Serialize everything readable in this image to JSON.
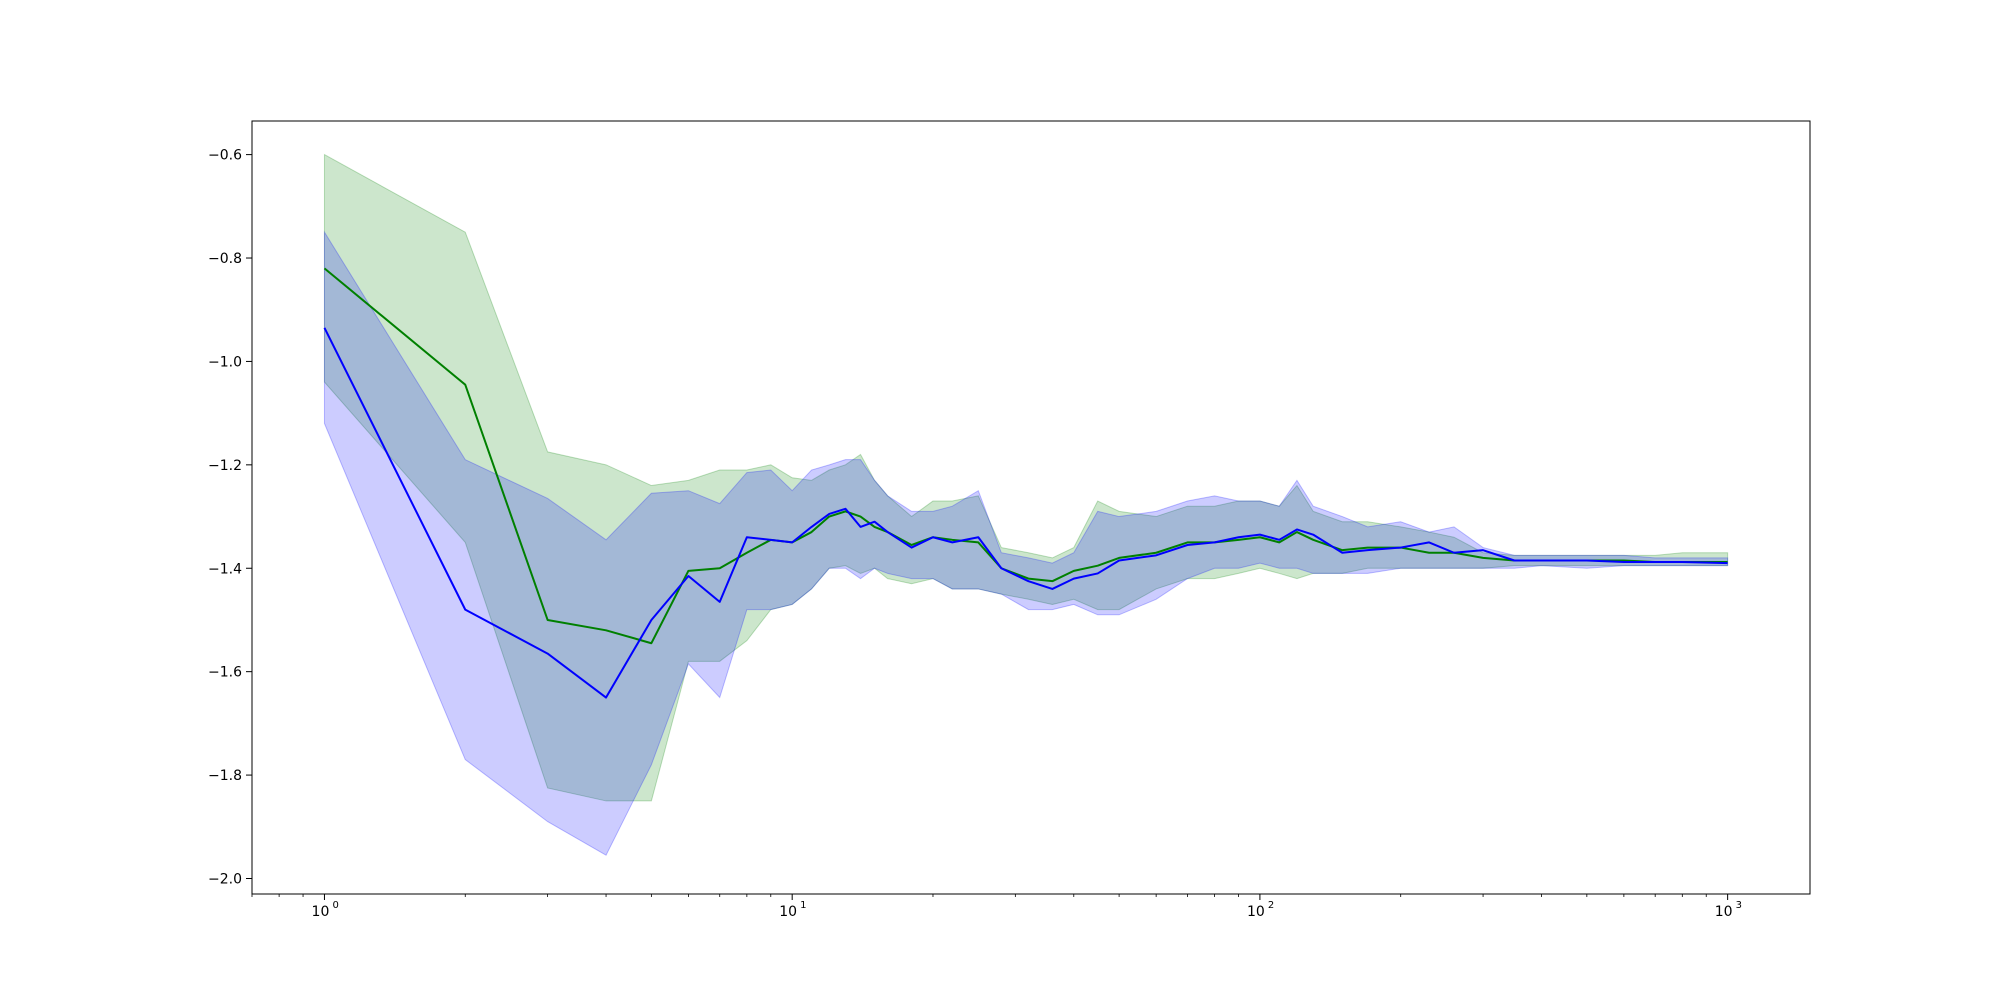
{
  "chart_data": {
    "type": "line",
    "title": "",
    "xlabel": "",
    "ylabel": "",
    "xscale": "log",
    "xlim": [
      0.7,
      1500
    ],
    "ylim": [
      -2.03,
      -0.535
    ],
    "grid": false,
    "legend": "none",
    "x_ticks": [
      {
        "base": "10",
        "exp": "0",
        "value": 1
      },
      {
        "base": "10",
        "exp": "1",
        "value": 10
      },
      {
        "base": "10",
        "exp": "2",
        "value": 100
      },
      {
        "base": "10",
        "exp": "3",
        "value": 1000
      }
    ],
    "y_ticks": [
      {
        "label": "−0.6",
        "value": -0.6
      },
      {
        "label": "−0.8",
        "value": -0.8
      },
      {
        "label": "−1.0",
        "value": -1.0
      },
      {
        "label": "−1.2",
        "value": -1.2
      },
      {
        "label": "−1.4",
        "value": -1.4
      },
      {
        "label": "−1.6",
        "value": -1.6
      },
      {
        "label": "−1.8",
        "value": -1.8
      },
      {
        "label": "−2.0",
        "value": -2.0
      }
    ],
    "series": [
      {
        "color": "#008000",
        "band_color": "#008000",
        "x": [
          1,
          2,
          3,
          4,
          5,
          6,
          7,
          8,
          9,
          10,
          11,
          12,
          13,
          14,
          15,
          16,
          18,
          20,
          22,
          25,
          28,
          32,
          36,
          40,
          45,
          50,
          60,
          70,
          80,
          90,
          100,
          110,
          120,
          130,
          150,
          170,
          200,
          230,
          260,
          300,
          350,
          400,
          500,
          600,
          700,
          800,
          1000
        ],
        "y": [
          -0.82,
          -1.045,
          -1.5,
          -1.52,
          -1.545,
          -1.405,
          -1.4,
          -1.37,
          -1.345,
          -1.35,
          -1.33,
          -1.3,
          -1.29,
          -1.3,
          -1.32,
          -1.33,
          -1.355,
          -1.34,
          -1.345,
          -1.35,
          -1.4,
          -1.42,
          -1.425,
          -1.405,
          -1.395,
          -1.38,
          -1.37,
          -1.35,
          -1.35,
          -1.345,
          -1.34,
          -1.35,
          -1.33,
          -1.345,
          -1.365,
          -1.36,
          -1.36,
          -1.37,
          -1.37,
          -1.38,
          -1.385,
          -1.385,
          -1.385,
          -1.385,
          -1.388,
          -1.388,
          -1.388
        ],
        "low": [
          -1.04,
          -1.35,
          -1.825,
          -1.85,
          -1.85,
          -1.58,
          -1.58,
          -1.54,
          -1.48,
          -1.47,
          -1.44,
          -1.4,
          -1.395,
          -1.41,
          -1.4,
          -1.42,
          -1.43,
          -1.42,
          -1.44,
          -1.44,
          -1.45,
          -1.46,
          -1.47,
          -1.46,
          -1.48,
          -1.48,
          -1.44,
          -1.42,
          -1.42,
          -1.41,
          -1.4,
          -1.41,
          -1.42,
          -1.41,
          -1.41,
          -1.4,
          -1.4,
          -1.4,
          -1.4,
          -1.4,
          -1.395,
          -1.395,
          -1.395,
          -1.395,
          -1.395,
          -1.395,
          -1.395
        ],
        "high": [
          -0.6,
          -0.75,
          -1.175,
          -1.2,
          -1.24,
          -1.23,
          -1.21,
          -1.21,
          -1.2,
          -1.225,
          -1.23,
          -1.21,
          -1.2,
          -1.18,
          -1.23,
          -1.26,
          -1.3,
          -1.27,
          -1.27,
          -1.26,
          -1.36,
          -1.37,
          -1.38,
          -1.36,
          -1.27,
          -1.29,
          -1.3,
          -1.28,
          -1.28,
          -1.27,
          -1.27,
          -1.28,
          -1.24,
          -1.29,
          -1.31,
          -1.31,
          -1.32,
          -1.33,
          -1.34,
          -1.37,
          -1.375,
          -1.375,
          -1.375,
          -1.375,
          -1.375,
          -1.37,
          -1.37
        ]
      },
      {
        "color": "#0000ff",
        "band_color": "#0000ff",
        "x": [
          1,
          2,
          3,
          4,
          5,
          6,
          7,
          8,
          9,
          10,
          11,
          12,
          13,
          14,
          15,
          16,
          18,
          20,
          22,
          25,
          28,
          32,
          36,
          40,
          45,
          50,
          60,
          70,
          80,
          90,
          100,
          110,
          120,
          130,
          150,
          170,
          200,
          230,
          260,
          300,
          350,
          400,
          500,
          600,
          700,
          800,
          1000
        ],
        "y": [
          -0.935,
          -1.48,
          -1.565,
          -1.65,
          -1.5,
          -1.415,
          -1.465,
          -1.34,
          -1.345,
          -1.35,
          -1.32,
          -1.295,
          -1.285,
          -1.32,
          -1.31,
          -1.33,
          -1.36,
          -1.34,
          -1.35,
          -1.34,
          -1.4,
          -1.425,
          -1.44,
          -1.42,
          -1.41,
          -1.385,
          -1.375,
          -1.355,
          -1.35,
          -1.34,
          -1.335,
          -1.345,
          -1.325,
          -1.335,
          -1.37,
          -1.365,
          -1.36,
          -1.35,
          -1.37,
          -1.365,
          -1.385,
          -1.385,
          -1.385,
          -1.388,
          -1.388,
          -1.388,
          -1.39
        ],
        "low": [
          -1.12,
          -1.77,
          -1.89,
          -1.955,
          -1.78,
          -1.585,
          -1.65,
          -1.48,
          -1.48,
          -1.47,
          -1.44,
          -1.4,
          -1.4,
          -1.42,
          -1.4,
          -1.41,
          -1.42,
          -1.42,
          -1.44,
          -1.44,
          -1.45,
          -1.48,
          -1.48,
          -1.47,
          -1.49,
          -1.49,
          -1.46,
          -1.42,
          -1.4,
          -1.4,
          -1.39,
          -1.4,
          -1.4,
          -1.41,
          -1.41,
          -1.41,
          -1.4,
          -1.4,
          -1.4,
          -1.4,
          -1.4,
          -1.395,
          -1.4,
          -1.395,
          -1.395,
          -1.395,
          -1.395
        ],
        "high": [
          -0.75,
          -1.19,
          -1.265,
          -1.345,
          -1.255,
          -1.25,
          -1.275,
          -1.215,
          -1.21,
          -1.25,
          -1.21,
          -1.2,
          -1.19,
          -1.19,
          -1.23,
          -1.26,
          -1.29,
          -1.29,
          -1.28,
          -1.25,
          -1.37,
          -1.38,
          -1.39,
          -1.37,
          -1.29,
          -1.3,
          -1.29,
          -1.27,
          -1.26,
          -1.27,
          -1.27,
          -1.28,
          -1.23,
          -1.28,
          -1.3,
          -1.32,
          -1.31,
          -1.33,
          -1.32,
          -1.36,
          -1.375,
          -1.375,
          -1.375,
          -1.375,
          -1.38,
          -1.38,
          -1.38
        ]
      }
    ]
  }
}
